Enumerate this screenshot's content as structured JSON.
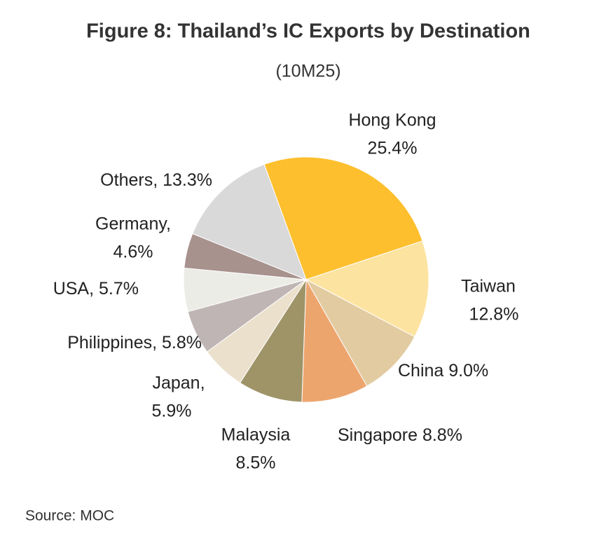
{
  "chart_data": {
    "type": "pie",
    "title": "Figure 8: Thailand’s IC Exports by Destination",
    "subtitle": "(10M25)",
    "source": "Source: MOC",
    "categories": [
      "Hong Kong",
      "Taiwan",
      "China",
      "Singapore",
      "Malaysia",
      "Japan,",
      "Philippines,",
      "USA,",
      "Germany,",
      "Others,"
    ],
    "values": [
      25.4,
      12.8,
      9.0,
      8.8,
      8.5,
      5.9,
      5.8,
      5.7,
      4.6,
      13.3
    ],
    "value_labels": [
      "25.4%",
      "12.8%",
      "9.0%",
      "8.8%",
      "8.5%",
      "5.9%",
      "5.8%",
      "5.7%",
      "4.6%",
      "13.3%"
    ],
    "colors": [
      "#FDBF2D",
      "#FDE3A0",
      "#E2CBA0",
      "#EDA56E",
      "#9E9468",
      "#EAE0CC",
      "#C0B5B5",
      "#ECECE6",
      "#A8928E",
      "#D9D9D9"
    ]
  }
}
